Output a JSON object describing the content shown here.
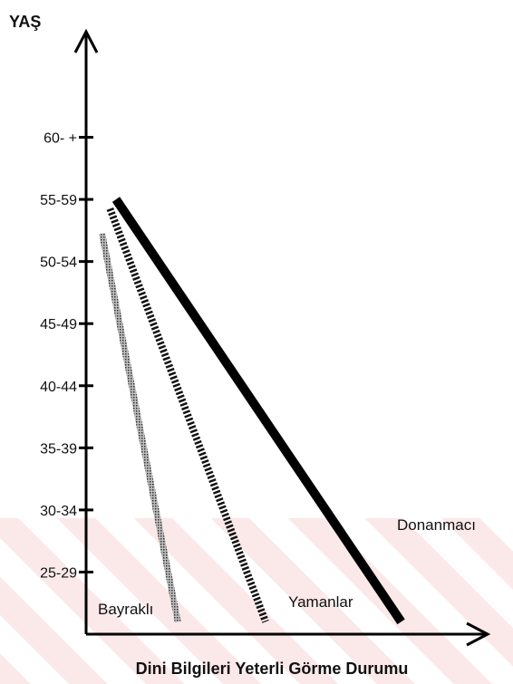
{
  "chart_data": {
    "type": "line",
    "ylabel": "YAŞ",
    "xlabel": "Dini Bilgileri Yeterli Görme Durumu",
    "y_categories": [
      "25-29",
      "30-34",
      "35-39",
      "40-44",
      "45-49",
      "50-54",
      "55-59",
      "60- +"
    ],
    "y_range": [
      0,
      9.7
    ],
    "x_range": [
      0,
      10
    ],
    "series": [
      {
        "name": "Bayraklı",
        "style": "stippled",
        "color": "#777777",
        "x": [
          0.4,
          2.3
        ],
        "y": [
          6.45,
          0.2
        ]
      },
      {
        "name": "Yamanlar",
        "style": "hatched",
        "color": "#111111",
        "x": [
          0.6,
          4.5
        ],
        "y": [
          6.85,
          0.2
        ]
      },
      {
        "name": "Donanmacı",
        "style": "solid-thick",
        "color": "#000000",
        "x": [
          0.75,
          7.9
        ],
        "y": [
          7.0,
          0.2
        ]
      }
    ],
    "background_band_color": "#f7dada"
  }
}
